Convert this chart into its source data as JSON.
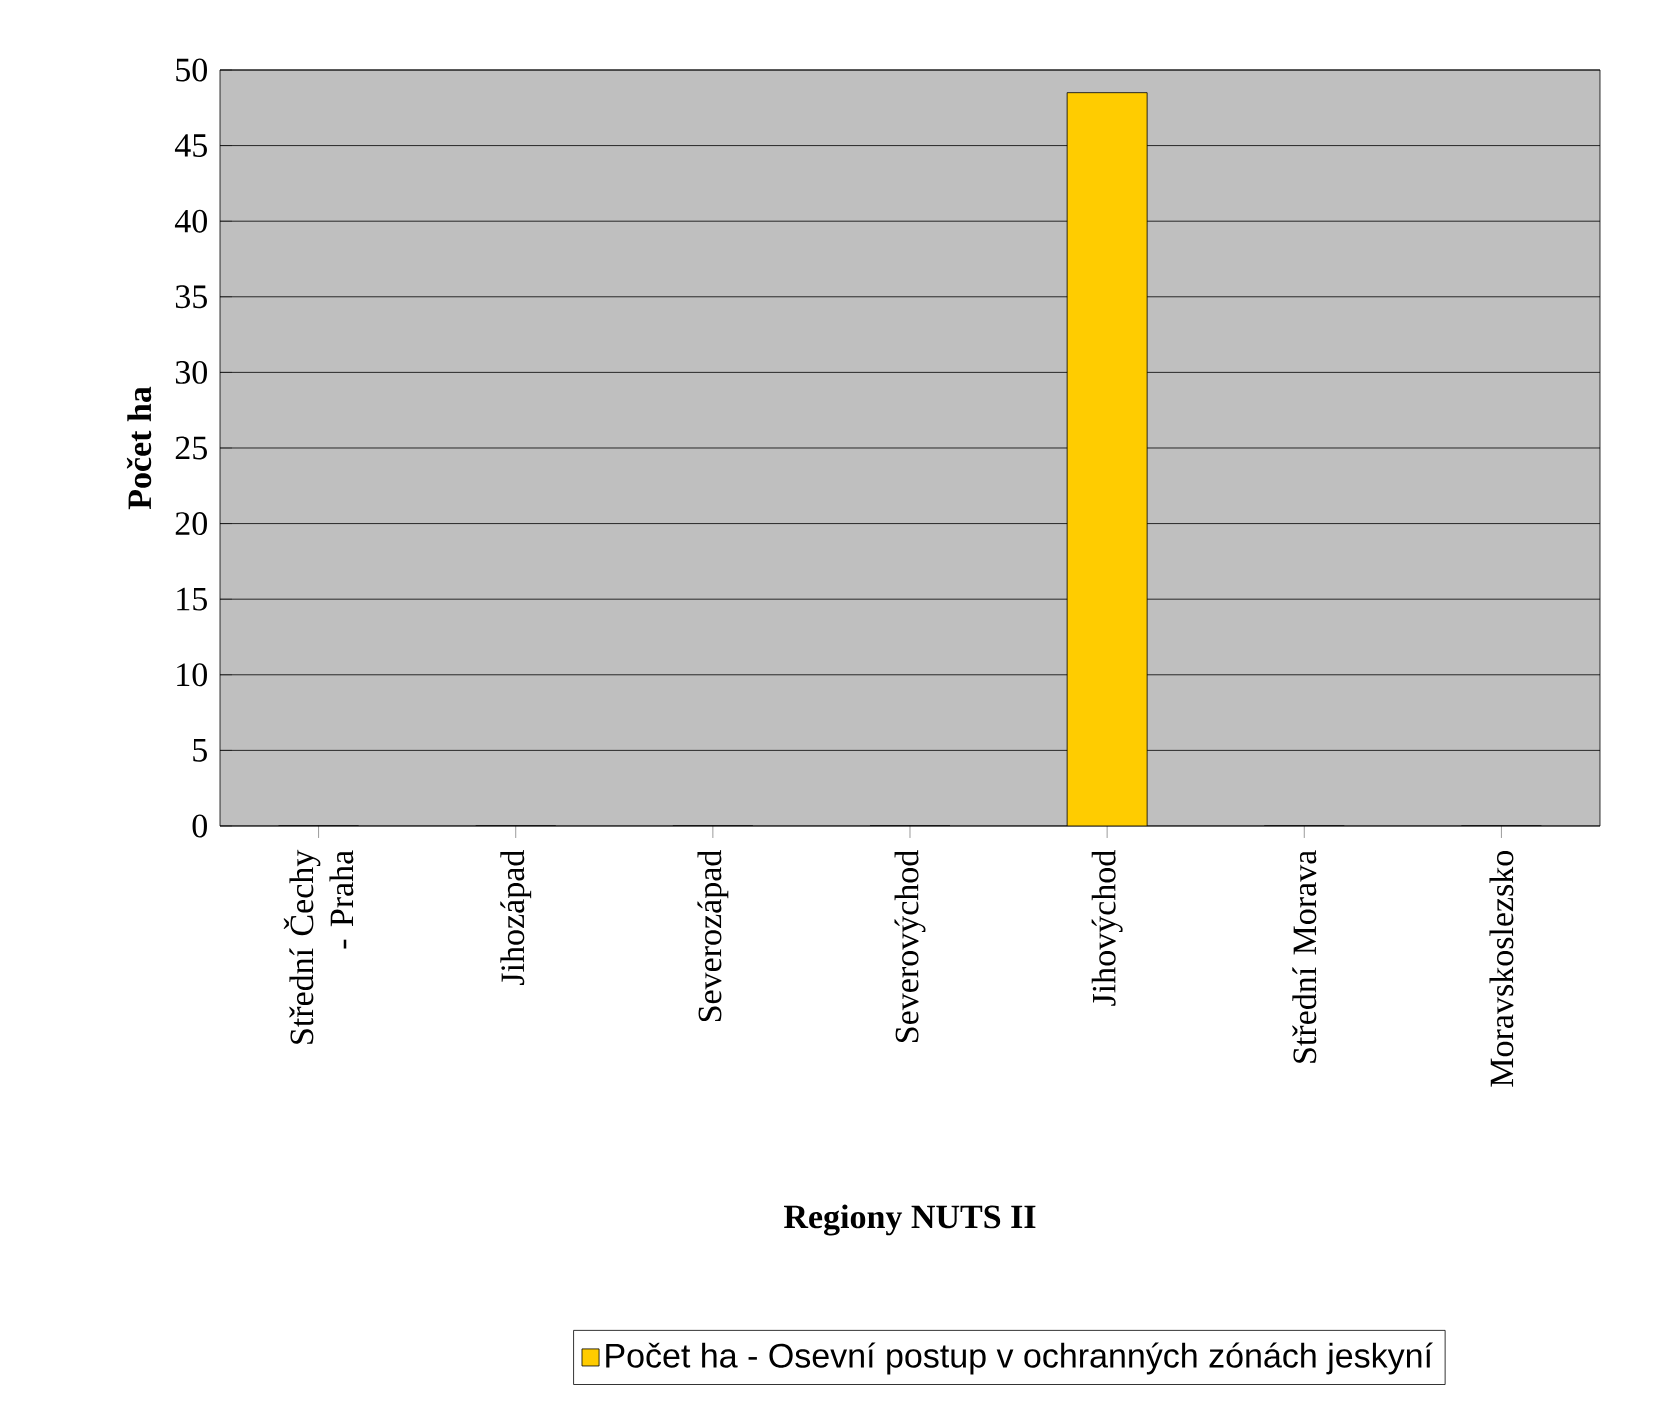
{
  "chart_data": {
    "type": "bar",
    "categories": [
      "Střední Čechy - Praha",
      "Jihozápad",
      "Severozápad",
      "Severovýchod",
      "Jihovýchod",
      "Střední Morava",
      "Moravskoslezsko"
    ],
    "series": [
      {
        "name": "Počet ha - Osevní postup v ochranných zónách jeskyní",
        "color": "#ffcc00",
        "values": [
          0,
          0,
          0,
          0,
          48.5,
          0,
          0
        ]
      }
    ],
    "xlabel": "Regiony NUTS II",
    "ylabel": "Počet ha",
    "ylim": [
      0,
      50
    ],
    "yticks": [
      0,
      5,
      10,
      15,
      20,
      25,
      30,
      35,
      40,
      45,
      50
    ],
    "grid": "y",
    "legend": "bottom"
  }
}
